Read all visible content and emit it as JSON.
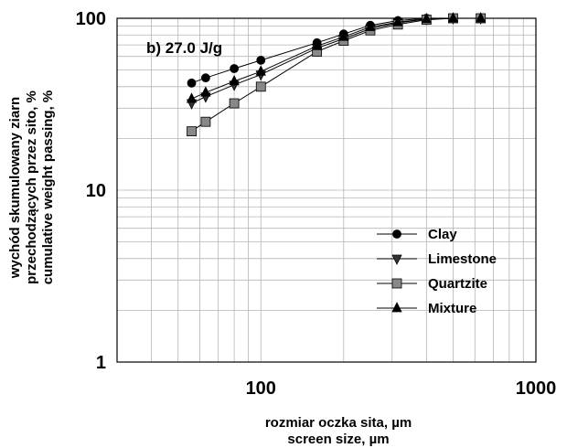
{
  "chart_data": {
    "type": "line",
    "annotation": "b) 27.0 J/g",
    "xlabel_lines": [
      "rozmiar oczka sita, µm",
      "screen size, µm"
    ],
    "ylabel_lines": [
      "wychód skumulowany ziarn",
      "przechodzących przez sito, %",
      "cumulative weight passing, %"
    ],
    "xscale": "log",
    "yscale": "log",
    "xlim": [
      30,
      1000
    ],
    "ylim": [
      1,
      100
    ],
    "x_ticks": [
      100,
      1000
    ],
    "x_tick_labels": [
      "100",
      "1000"
    ],
    "y_ticks": [
      1,
      10,
      100
    ],
    "y_tick_labels": [
      "1",
      "10",
      "100"
    ],
    "grid": true,
    "legend_position": "lower-right",
    "series": [
      {
        "name": "Clay",
        "marker": "circle",
        "color": "#000000",
        "x": [
          56,
          63,
          80,
          100,
          160,
          200,
          250,
          315,
          400,
          500,
          630
        ],
        "y": [
          42,
          45,
          51,
          57,
          72,
          81,
          91,
          97,
          100,
          100,
          100
        ]
      },
      {
        "name": "Limestone",
        "marker": "triangle-down",
        "color": "#333333",
        "x": [
          56,
          63,
          80,
          100,
          160,
          200,
          250,
          315,
          400,
          500,
          630
        ],
        "y": [
          32,
          35,
          41,
          47,
          67,
          76,
          87,
          94,
          99,
          100,
          100
        ]
      },
      {
        "name": "Quartzite",
        "marker": "square",
        "color": "#888888",
        "x": [
          56,
          63,
          80,
          100,
          160,
          200,
          250,
          315,
          400,
          500,
          630
        ],
        "y": [
          22,
          25,
          32,
          40,
          64,
          74,
          85,
          92,
          98,
          100,
          100
        ]
      },
      {
        "name": "Mixture",
        "marker": "triangle-up",
        "color": "#000000",
        "x": [
          56,
          63,
          80,
          100,
          160,
          200,
          250,
          315,
          400,
          500,
          630
        ],
        "y": [
          34,
          37,
          43,
          49,
          69,
          78,
          89,
          95,
          99,
          100,
          100
        ]
      }
    ]
  }
}
